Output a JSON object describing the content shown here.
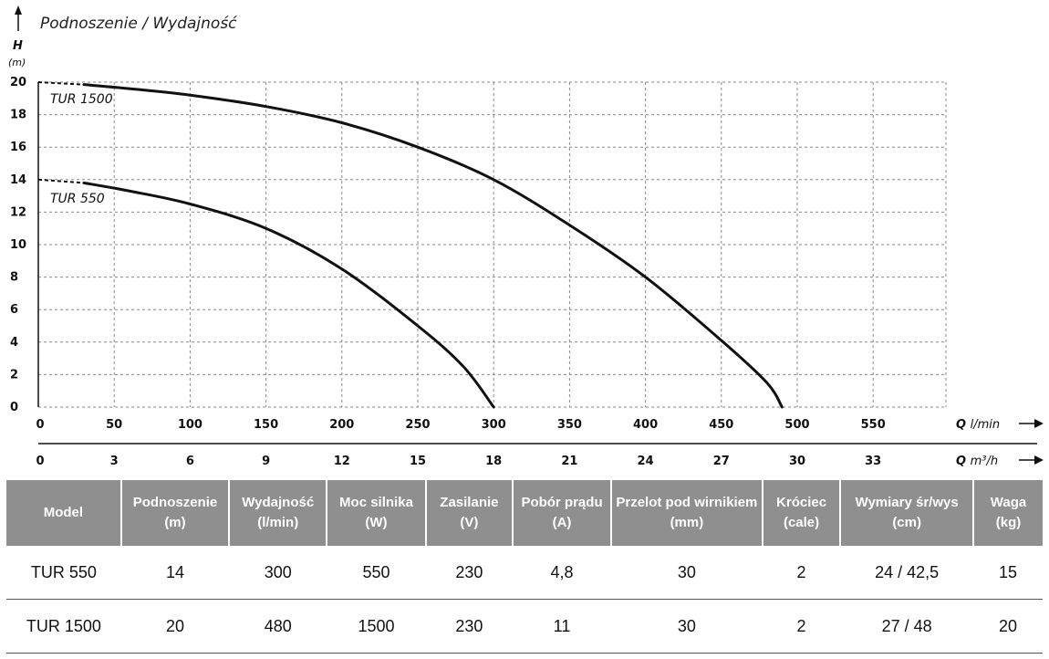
{
  "chart_data": {
    "type": "line",
    "title": "Podnoszenie / Wydajność",
    "ylabel": "H",
    "yunit": "(m)",
    "ylim": [
      0,
      20
    ],
    "yticks": [
      "0",
      "2",
      "4",
      "6",
      "8",
      "10",
      "12",
      "14",
      "16",
      "18",
      "20"
    ],
    "xlabel": "Q",
    "xunit": "l/min",
    "xlim": [
      0,
      600
    ],
    "xticks": [
      "0",
      "50",
      "100",
      "150",
      "200",
      "250",
      "300",
      "350",
      "400",
      "450",
      "500",
      "550"
    ],
    "x2label": "Q",
    "x2unit": "m³/h",
    "x2ticks": [
      "0",
      "3",
      "6",
      "9",
      "12",
      "15",
      "18",
      "21",
      "24",
      "27",
      "30",
      "33"
    ],
    "grid": true,
    "series": [
      {
        "name": "TUR 1500",
        "x": [
          0,
          30,
          60,
          100,
          150,
          200,
          250,
          300,
          350,
          400,
          450,
          480,
          490
        ],
        "y": [
          20,
          19.85,
          19.6,
          19.2,
          18.5,
          17.5,
          16.0,
          14.0,
          11.2,
          8.0,
          4.1,
          1.5,
          0
        ]
      },
      {
        "name": "TUR 550",
        "x": [
          0,
          30,
          60,
          100,
          150,
          200,
          250,
          280,
          300
        ],
        "y": [
          14,
          13.8,
          13.3,
          12.5,
          11.0,
          8.5,
          5.0,
          2.5,
          0
        ]
      }
    ]
  },
  "table": {
    "headers": [
      [
        "Model",
        ""
      ],
      [
        "Podnoszenie",
        "(m)"
      ],
      [
        "Wydajność",
        "(l/min)"
      ],
      [
        "Moc silnika",
        "(W)"
      ],
      [
        "Zasilanie",
        "(V)"
      ],
      [
        "Pobór prądu",
        "(A)"
      ],
      [
        "Przelot pod wirnikiem",
        "(mm)"
      ],
      [
        "Króciec",
        "(cale)"
      ],
      [
        "Wymiary śr/wys",
        "(cm)"
      ],
      [
        "Waga",
        "(kg)"
      ]
    ],
    "rows": [
      [
        "TUR 550",
        "14",
        "300",
        "550",
        "230",
        "4,8",
        "30",
        "2",
        "24 / 42,5",
        "15"
      ],
      [
        "TUR 1500",
        "20",
        "480",
        "1500",
        "230",
        "11",
        "30",
        "2",
        "27 / 48",
        "20"
      ]
    ]
  }
}
